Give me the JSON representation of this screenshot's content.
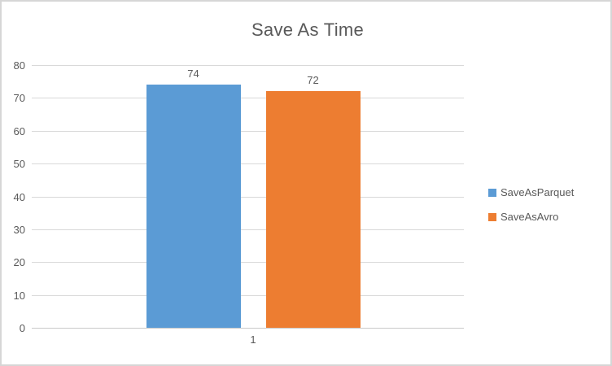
{
  "chart_data": {
    "type": "bar",
    "title": "Save As Time",
    "categories": [
      "1"
    ],
    "series": [
      {
        "name": "SaveAsParquet",
        "values": [
          74
        ],
        "color": "#5b9bd5"
      },
      {
        "name": "SaveAsAvro",
        "values": [
          72
        ],
        "color": "#ed7d31"
      }
    ],
    "xlabel": "",
    "ylabel": "",
    "ylim": [
      0,
      80
    ],
    "ytick_step": 10,
    "grid": true,
    "legend_position": "right",
    "text_color": "#595959",
    "gridline_color": "#d9d9d9"
  }
}
